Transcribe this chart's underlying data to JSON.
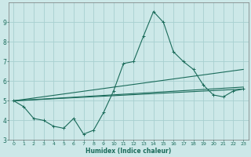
{
  "xlabel": "Humidex (Indice chaleur)",
  "bg_color": "#cce8e8",
  "grid_color": "#a8d0d0",
  "line_color": "#1a6b5a",
  "xlim": [
    -0.5,
    23.5
  ],
  "ylim": [
    3,
    10
  ],
  "xtick_labels": [
    "0",
    "1",
    "2",
    "3",
    "4",
    "5",
    "6",
    "7",
    "8",
    "9",
    "10",
    "11",
    "12",
    "13",
    "14",
    "15",
    "16",
    "17",
    "18",
    "19",
    "20",
    "21",
    "22",
    "23"
  ],
  "yticks": [
    3,
    4,
    5,
    6,
    7,
    8,
    9
  ],
  "series": [
    {
      "x": [
        0,
        1,
        2,
        3,
        4,
        5,
        6,
        7,
        8,
        9,
        10,
        11,
        12,
        13,
        14,
        15,
        16,
        17,
        18,
        19,
        20,
        21,
        22,
        23
      ],
      "y": [
        5.0,
        4.7,
        4.1,
        4.0,
        3.7,
        3.6,
        4.1,
        3.3,
        3.5,
        4.4,
        5.5,
        6.9,
        7.0,
        8.3,
        9.55,
        9.0,
        7.5,
        7.0,
        6.6,
        5.8,
        5.3,
        5.2,
        5.5,
        5.6
      ],
      "marker": true
    },
    {
      "x": [
        0,
        23
      ],
      "y": [
        5.0,
        5.7
      ],
      "marker": false
    },
    {
      "x": [
        0,
        23
      ],
      "y": [
        5.0,
        5.6
      ],
      "marker": false
    },
    {
      "x": [
        0,
        23
      ],
      "y": [
        5.0,
        6.6
      ],
      "marker": false
    }
  ]
}
